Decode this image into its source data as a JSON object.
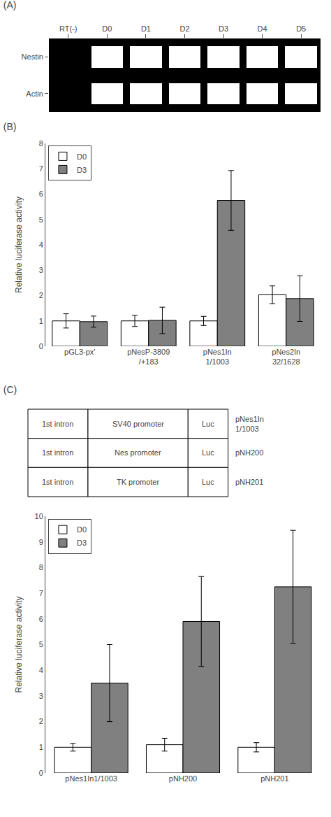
{
  "chart_data": [
    {
      "type": "gel",
      "title": "(A)",
      "categories": [
        "RT(-)",
        "D0",
        "D1",
        "D2",
        "D3",
        "D4",
        "D5"
      ],
      "series": [
        {
          "name": "Nestin",
          "values": [
            false,
            true,
            true,
            true,
            true,
            true,
            true
          ]
        },
        {
          "name": "Actin",
          "values": [
            false,
            true,
            true,
            true,
            true,
            true,
            true
          ]
        }
      ]
    },
    {
      "type": "bar",
      "title": "(B)",
      "categories": [
        "pGL3-px'",
        "pNesP-3809\n/+183",
        "pNes1In\n1/1003",
        "pNes2In\n32/1628"
      ],
      "series": [
        {
          "name": "D0",
          "color": "#ffffff",
          "values": [
            1.0,
            1.0,
            1.0,
            2.03
          ],
          "errors": [
            0.28,
            0.22,
            0.18,
            0.35
          ]
        },
        {
          "name": "D3",
          "color": "#808080",
          "values": [
            0.97,
            1.02,
            5.75,
            1.88
          ],
          "errors": [
            0.22,
            0.52,
            1.18,
            0.9
          ]
        }
      ],
      "ylabel": "Relative luciferase activity",
      "ylim": [
        0,
        8
      ],
      "yticks": [
        0,
        1,
        2,
        3,
        4,
        5,
        6,
        7,
        8
      ],
      "legend": "upper left",
      "grid": false
    },
    {
      "type": "table",
      "title": "(C)",
      "rows": [
        [
          "1st intron",
          "SV40 promoter",
          "Luc",
          "pNes1In\n1/1003"
        ],
        [
          "1st intron",
          "Nes promoter",
          "Luc",
          "pNH200"
        ],
        [
          "1st intron",
          "TK promoter",
          "Luc",
          "pNH201"
        ]
      ]
    },
    {
      "type": "bar",
      "categories": [
        "pNes1In1/1003",
        "pNH200",
        "pNH201"
      ],
      "series": [
        {
          "name": "D0",
          "color": "#ffffff",
          "values": [
            1.0,
            1.1,
            1.0
          ],
          "errors": [
            0.15,
            0.25,
            0.18
          ]
        },
        {
          "name": "D3",
          "color": "#808080",
          "values": [
            3.5,
            5.9,
            7.25
          ],
          "errors": [
            1.5,
            1.75,
            2.2
          ]
        }
      ],
      "ylabel": "Relative luciferase activity",
      "ylim": [
        0,
        10
      ],
      "yticks": [
        0,
        1,
        2,
        3,
        4,
        5,
        6,
        7,
        8,
        9,
        10
      ],
      "legend": "upper left",
      "grid": false
    }
  ]
}
